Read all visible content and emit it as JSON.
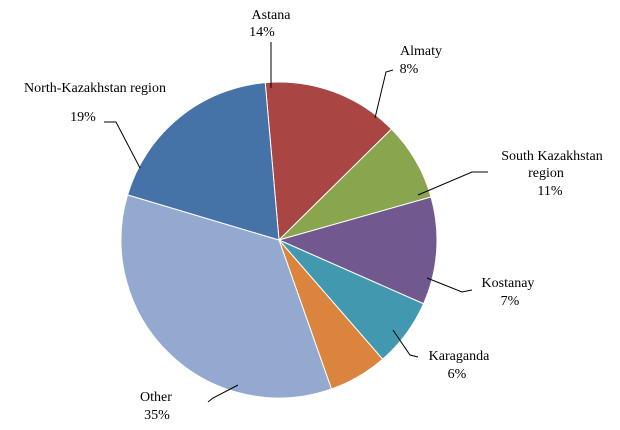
{
  "chart_data": {
    "type": "pie",
    "title": "",
    "start_angle_deg": -95,
    "slices": [
      {
        "name": "Astana",
        "value_label": "14%",
        "value": 14,
        "color": "#A94643"
      },
      {
        "name": "Almaty",
        "value_label": "8%",
        "value": 8,
        "color": "#89A64E"
      },
      {
        "name": "South Kazakhstan region",
        "value_label": "11%",
        "value": 11,
        "color": "#71588F"
      },
      {
        "name": "Kostanay",
        "value_label": "7%",
        "value": 7,
        "color": "#4298AF"
      },
      {
        "name": "Karaganda",
        "value_label": "6%",
        "value": 6,
        "color": "#DB843D"
      },
      {
        "name": "Other",
        "value_label": "35%",
        "value": 35,
        "color": "#93A9CF"
      },
      {
        "name": "North-Kazakhstan region",
        "value_label": "19%",
        "value": 19,
        "color": "#4572A7"
      }
    ]
  }
}
